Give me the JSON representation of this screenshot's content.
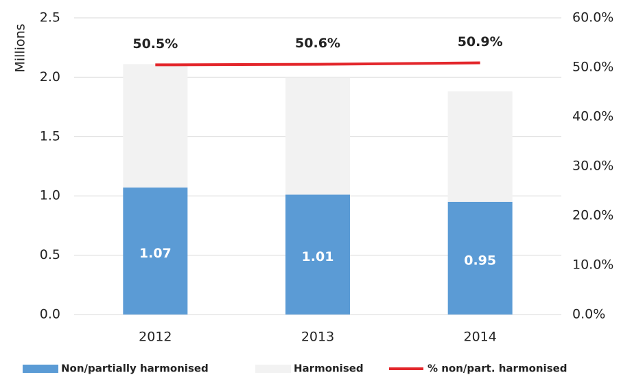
{
  "chart_data": {
    "type": "bar",
    "stacked": true,
    "ylabel": "Millions",
    "categories": [
      "2012",
      "2013",
      "2014"
    ],
    "series": [
      {
        "name": "Non/partially harmonised",
        "color": "#5b9bd5",
        "values": [
          1.07,
          1.01,
          0.95
        ]
      },
      {
        "name": "Harmonised",
        "color": "#f2f2f2",
        "values": [
          1.04,
          0.99,
          0.93
        ]
      },
      {
        "name": "% non/part. harmonised",
        "color": "#e3262b",
        "type": "line",
        "axis": "y2",
        "values": [
          50.5,
          50.6,
          50.9
        ],
        "value_labels": [
          "50.5%",
          "50.6%",
          "50.9%"
        ]
      }
    ],
    "ylim": [
      0,
      2.5
    ],
    "yticks": [
      {
        "value": 0,
        "label": "0.0"
      },
      0.5,
      {
        "value": 1,
        "label": "1.0"
      },
      1.5,
      {
        "value": 2,
        "label": "2.0"
      },
      2.5
    ],
    "y2lim": [
      0,
      60
    ],
    "y2ticks": [
      {
        "value": 0,
        "label": "0.0%"
      },
      {
        "value": 10,
        "label": "10.0%"
      },
      {
        "value": 20,
        "label": "20.0%"
      },
      {
        "value": 30,
        "label": "30.0%"
      },
      {
        "value": 40,
        "label": "40.0%"
      },
      {
        "value": 50,
        "label": "50.0%"
      },
      {
        "value": 60,
        "label": "60.0%"
      }
    ],
    "grid": true,
    "legend": "bottom"
  }
}
